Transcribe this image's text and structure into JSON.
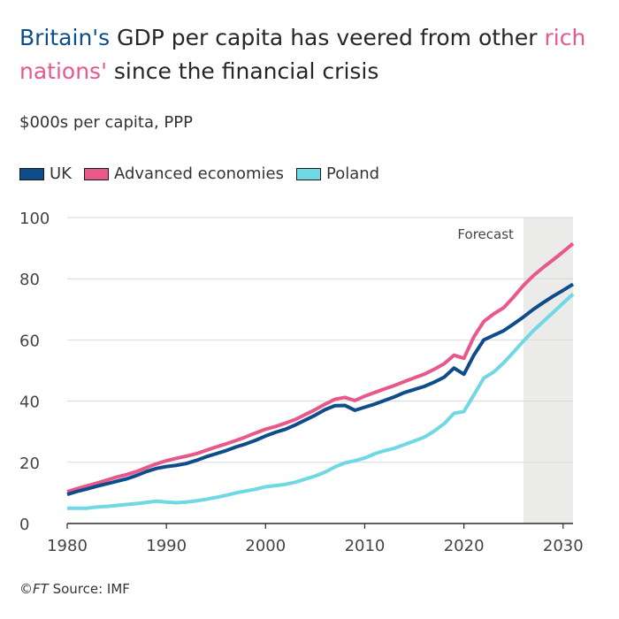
{
  "title": {
    "part1": "Britain's",
    "part2": " GDP per capita has veered from other ",
    "part3": "rich nations'",
    "part4": " since the financial crisis"
  },
  "footer": {
    "copyright": "©FT",
    "source": " Source: IMF"
  },
  "colors": {
    "uk": "#0f4c8c",
    "advanced": "#e8588b",
    "poland": "#6fd8e4",
    "forecast_bg": "#ebebea"
  },
  "chart_data": {
    "type": "line",
    "title": "Britain's GDP per capita has veered from other rich nations' since the financial crisis",
    "subtitle": "$000s per capita, PPP",
    "ylabel": "$000s per capita, PPP",
    "xlim": [
      1980,
      2031
    ],
    "ylim": [
      0,
      100
    ],
    "xticks": [
      1980,
      1990,
      2000,
      2010,
      2020,
      2030
    ],
    "yticks": [
      0,
      20,
      40,
      60,
      80,
      100
    ],
    "grid": "horizontal",
    "annotation": {
      "label": "Forecast",
      "x_start": 2026,
      "x_end": 2031
    },
    "x": [
      1980,
      1981,
      1982,
      1983,
      1984,
      1985,
      1986,
      1987,
      1988,
      1989,
      1990,
      1991,
      1992,
      1993,
      1994,
      1995,
      1996,
      1997,
      1998,
      1999,
      2000,
      2001,
      2002,
      2003,
      2004,
      2005,
      2006,
      2007,
      2008,
      2009,
      2010,
      2011,
      2012,
      2013,
      2014,
      2015,
      2016,
      2017,
      2018,
      2019,
      2020,
      2021,
      2022,
      2023,
      2024,
      2025,
      2026,
      2027,
      2028,
      2029,
      2030,
      2031
    ],
    "series": [
      {
        "name": "UK",
        "key": "uk",
        "values": [
          9.5,
          10.5,
          11.3,
          12.2,
          13.0,
          13.8,
          14.6,
          15.7,
          17.0,
          18.0,
          18.6,
          19.0,
          19.6,
          20.6,
          21.8,
          22.8,
          23.8,
          25.0,
          26.0,
          27.2,
          28.6,
          29.8,
          30.8,
          32.2,
          33.8,
          35.4,
          37.2,
          38.5,
          38.6,
          37.0,
          38.0,
          39.0,
          40.2,
          41.4,
          42.8,
          43.8,
          44.8,
          46.2,
          47.8,
          50.8,
          48.8,
          55.0,
          60.0,
          61.5,
          63.0,
          65.2,
          67.5,
          70.0,
          72.2,
          74.3,
          76.2,
          78.2
        ]
      },
      {
        "name": "Advanced economies",
        "key": "advanced",
        "values": [
          10.4,
          11.4,
          12.3,
          13.2,
          14.2,
          15.2,
          16.0,
          17.0,
          18.3,
          19.5,
          20.5,
          21.3,
          22.0,
          22.8,
          23.9,
          25.0,
          26.0,
          27.1,
          28.3,
          29.6,
          30.8,
          31.7,
          32.8,
          34.0,
          35.6,
          37.2,
          39.0,
          40.6,
          41.2,
          40.2,
          41.6,
          42.8,
          44.0,
          45.1,
          46.4,
          47.6,
          48.8,
          50.4,
          52.2,
          55.0,
          54.0,
          61.0,
          66.0,
          68.5,
          70.5,
          74.0,
          77.8,
          81.0,
          83.7,
          86.2,
          88.8,
          91.5
        ]
      },
      {
        "name": "Poland",
        "key": "poland",
        "values": [
          5.0,
          5.0,
          5.0,
          5.4,
          5.6,
          5.9,
          6.2,
          6.5,
          6.9,
          7.3,
          7.0,
          6.8,
          7.0,
          7.4,
          7.9,
          8.5,
          9.2,
          10.0,
          10.6,
          11.2,
          12.0,
          12.4,
          12.8,
          13.5,
          14.5,
          15.5,
          16.8,
          18.5,
          19.8,
          20.5,
          21.4,
          22.8,
          23.8,
          24.6,
          25.8,
          27.0,
          28.2,
          30.2,
          32.6,
          36.0,
          36.6,
          42.0,
          47.5,
          49.5,
          52.5,
          56.0,
          59.6,
          63.0,
          66.0,
          69.0,
          72.0,
          75.0
        ]
      }
    ]
  }
}
